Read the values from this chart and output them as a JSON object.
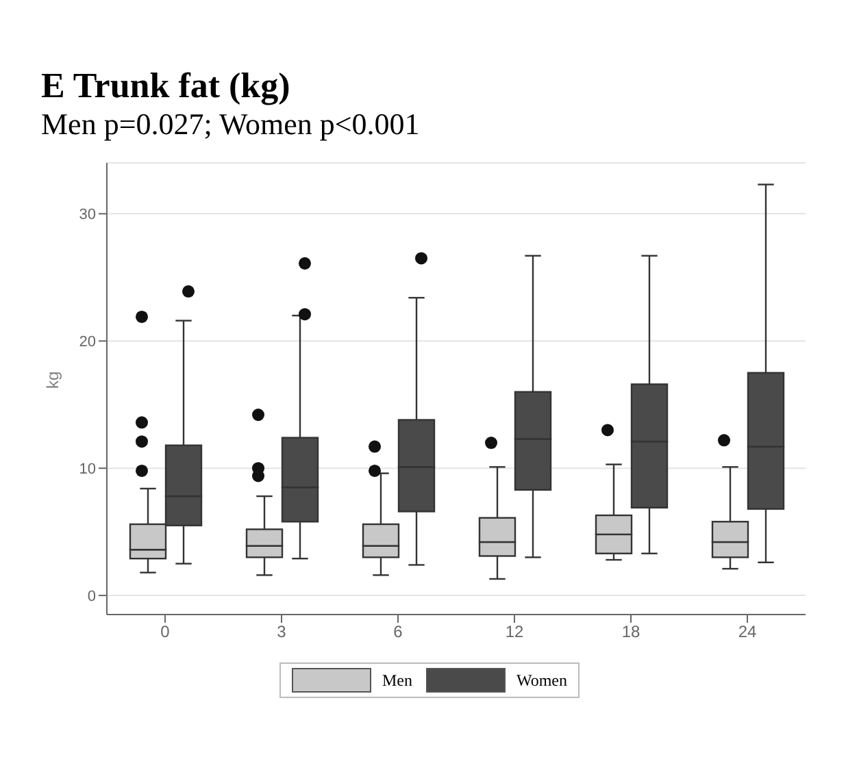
{
  "chart_data": {
    "type": "box",
    "title": "E Trunk fat (kg)",
    "subtitle": "Men p=0.027; Women p<0.001",
    "ylabel": "kg",
    "categories": [
      "0",
      "3",
      "6",
      "12",
      "18",
      "24"
    ],
    "ylim": [
      -1.5,
      34
    ],
    "yticks": [
      0,
      10,
      20,
      30
    ],
    "grid": "y",
    "legend": "bottom",
    "marker": "circle",
    "series": [
      {
        "name": "Men",
        "color": "#c8c8c8",
        "boxes": [
          {
            "low": 1.8,
            "q1": 2.9,
            "median": 3.6,
            "q3": 5.6,
            "high": 8.4,
            "outliers": [
              9.8,
              12.1,
              13.6,
              21.9
            ]
          },
          {
            "low": 1.6,
            "q1": 3.0,
            "median": 3.9,
            "q3": 5.2,
            "high": 7.8,
            "outliers": [
              9.4,
              10.0,
              14.2
            ]
          },
          {
            "low": 1.6,
            "q1": 3.0,
            "median": 3.9,
            "q3": 5.6,
            "high": 9.6,
            "outliers": [
              9.8,
              11.7
            ]
          },
          {
            "low": 1.3,
            "q1": 3.1,
            "median": 4.2,
            "q3": 6.1,
            "high": 10.1,
            "outliers": [
              12.0
            ]
          },
          {
            "low": 2.8,
            "q1": 3.3,
            "median": 4.8,
            "q3": 6.3,
            "high": 10.3,
            "outliers": [
              13.0
            ]
          },
          {
            "low": 2.1,
            "q1": 3.0,
            "median": 4.2,
            "q3": 5.8,
            "high": 10.1,
            "outliers": [
              12.2
            ]
          }
        ]
      },
      {
        "name": "Women",
        "color": "#4a4a4a",
        "boxes": [
          {
            "low": 2.5,
            "q1": 5.5,
            "median": 7.8,
            "q3": 11.8,
            "high": 21.6,
            "outliers": [
              23.9
            ]
          },
          {
            "low": 2.9,
            "q1": 5.8,
            "median": 8.5,
            "q3": 12.4,
            "high": 22.0,
            "outliers": [
              22.1,
              26.1
            ]
          },
          {
            "low": 2.4,
            "q1": 6.6,
            "median": 10.1,
            "q3": 13.8,
            "high": 23.4,
            "outliers": [
              26.5
            ]
          },
          {
            "low": 3.0,
            "q1": 8.3,
            "median": 12.3,
            "q3": 16.0,
            "high": 26.7
          },
          {
            "low": 3.3,
            "q1": 6.9,
            "median": 12.1,
            "q3": 16.6,
            "high": 26.7
          },
          {
            "low": 2.6,
            "q1": 6.8,
            "median": 11.7,
            "q3": 17.5,
            "high": 32.3
          }
        ]
      }
    ]
  }
}
